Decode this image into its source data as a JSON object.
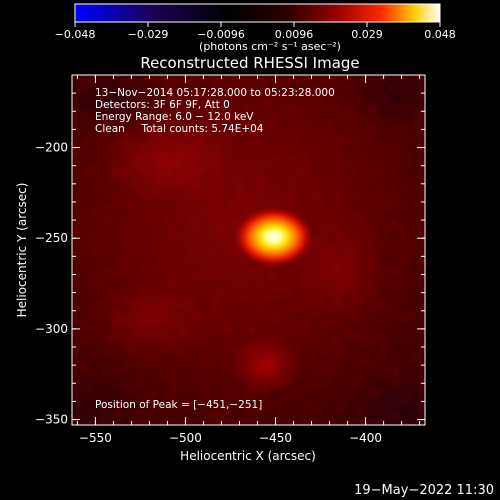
{
  "colorbar": {
    "ticks": [
      "−0.048",
      "−0.029",
      "−0.0096",
      "0.0096",
      "0.029",
      "0.048"
    ],
    "unit_label": "(photons cm⁻² s⁻¹ asec⁻²)",
    "colors": [
      "#0000ff",
      "#000010",
      "#000000",
      "#330000",
      "#8a0000",
      "#ff2200",
      "#ffcc00",
      "#ffffff"
    ]
  },
  "title": "Reconstructed RHESSI Image",
  "info": {
    "line1": "13−Nov−2014 05:17:28.000 to 05:23:28.000",
    "line2": "Detectors: 3F 6F 9F, Att 0",
    "line3": "Energy Range: 6.0 − 12.0 keV",
    "line4": "Clean     Total counts: 5.74E+04"
  },
  "peak_label": "Position of Peak = [−451,−251]",
  "x_axis": {
    "label": "Heliocentric X (arcsec)",
    "ticks": [
      {
        "value": -550,
        "label": "−550"
      },
      {
        "value": -500,
        "label": "−500"
      },
      {
        "value": -450,
        "label": "−450"
      },
      {
        "value": -400,
        "label": "−400"
      }
    ],
    "range": [
      -563,
      -367
    ]
  },
  "y_axis": {
    "label": "Heliocentric Y (arcsec)",
    "ticks": [
      {
        "value": -200,
        "label": "−200"
      },
      {
        "value": -250,
        "label": "−250"
      },
      {
        "value": -300,
        "label": "−300"
      },
      {
        "value": -350,
        "label": "−350"
      }
    ],
    "range": [
      -353,
      -160
    ]
  },
  "peak": {
    "x": -451,
    "y": -251
  },
  "timestamp": "19−May−2022 11:30"
}
